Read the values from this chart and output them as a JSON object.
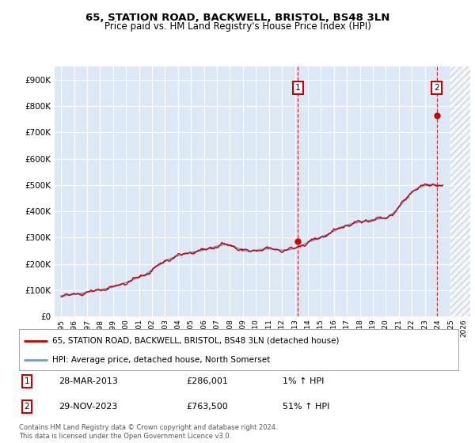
{
  "title": "65, STATION ROAD, BACKWELL, BRISTOL, BS48 3LN",
  "subtitle": "Price paid vs. HM Land Registry's House Price Index (HPI)",
  "legend_line1": "65, STATION ROAD, BACKWELL, BRISTOL, BS48 3LN (detached house)",
  "legend_line2": "HPI: Average price, detached house, North Somerset",
  "footnote": "Contains HM Land Registry data © Crown copyright and database right 2024.\nThis data is licensed under the Open Government Licence v3.0.",
  "annotation1": {
    "num": "1",
    "date": "28-MAR-2013",
    "price": "£286,001",
    "hpi": "1% ↑ HPI"
  },
  "annotation2": {
    "num": "2",
    "date": "29-NOV-2023",
    "price": "£763,500",
    "hpi": "51% ↑ HPI"
  },
  "sale1_year": 2013.23,
  "sale1_price": 286001,
  "sale2_year": 2023.91,
  "sale2_price": 763500,
  "ylim": [
    0,
    950000
  ],
  "xlim_min": 1994.5,
  "xlim_max": 2026.5,
  "background_color": "#dce8f5",
  "grid_color": "#ffffff",
  "red_color": "#cc0000",
  "blue_color": "#7799cc",
  "hatch_color": "#bbbbbb"
}
